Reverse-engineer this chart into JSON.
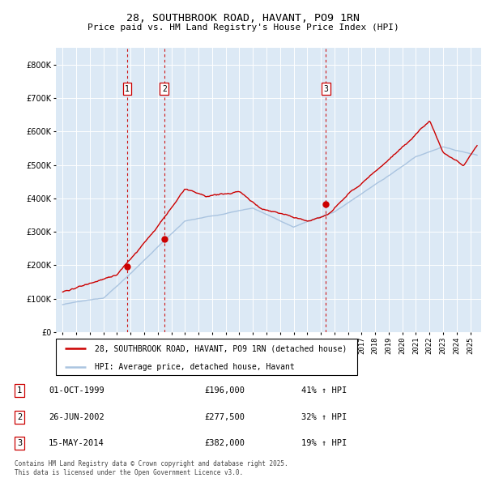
{
  "title": "28, SOUTHBROOK ROAD, HAVANT, PO9 1RN",
  "subtitle": "Price paid vs. HM Land Registry's House Price Index (HPI)",
  "background_color": "#dce9f5",
  "plot_background": "#dce9f5",
  "hpi_color": "#aac4e0",
  "price_color": "#cc0000",
  "vline_color": "#cc0000",
  "transactions": [
    {
      "label": "1",
      "date_num": 1999.75,
      "price": 196000,
      "info": "01-OCT-1999",
      "amount": "£196,000",
      "pct": "41% ↑ HPI"
    },
    {
      "label": "2",
      "date_num": 2002.48,
      "price": 277500,
      "info": "26-JUN-2002",
      "amount": "£277,500",
      "pct": "32% ↑ HPI"
    },
    {
      "label": "3",
      "date_num": 2014.37,
      "price": 382000,
      "info": "15-MAY-2014",
      "amount": "£382,000",
      "pct": "19% ↑ HPI"
    }
  ],
  "legend_entries": [
    "28, SOUTHBROOK ROAD, HAVANT, PO9 1RN (detached house)",
    "HPI: Average price, detached house, Havant"
  ],
  "footer": "Contains HM Land Registry data © Crown copyright and database right 2025.\nThis data is licensed under the Open Government Licence v3.0.",
  "ylim": [
    0,
    850000
  ],
  "yticks": [
    0,
    100000,
    200000,
    300000,
    400000,
    500000,
    600000,
    700000,
    800000
  ],
  "xlim": [
    1994.5,
    2025.8
  ]
}
